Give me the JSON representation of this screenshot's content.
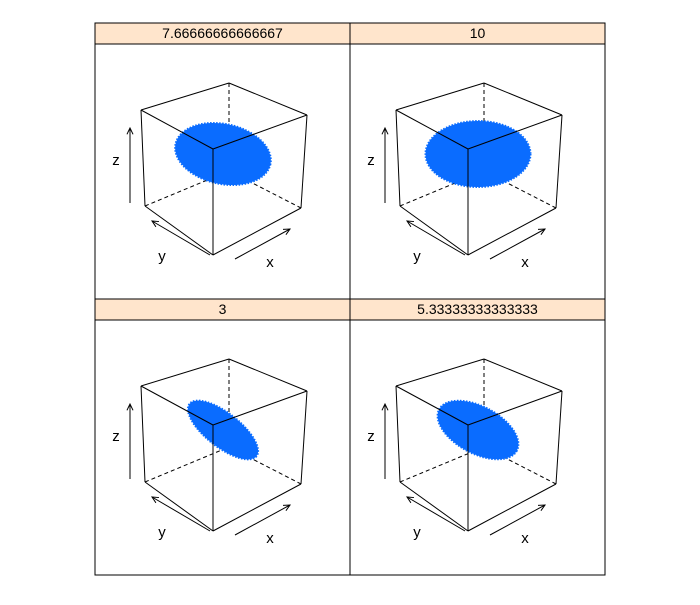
{
  "chart_data": {
    "type": "scatter",
    "layout": "2x2 lattice panels",
    "strip_color": "#ffe5cc",
    "point_color": "#0a6cff",
    "axis_labels": {
      "x": "x",
      "y": "y",
      "z": "z"
    },
    "panels": [
      {
        "strip_label": "7.66666666666667",
        "value": 7.66666666666667,
        "ellipse": {
          "rx": 0.97,
          "ry": 0.6,
          "angle_deg": 12
        }
      },
      {
        "strip_label": "10",
        "value": 10,
        "ellipse": {
          "rx": 1.05,
          "ry": 0.66,
          "angle_deg": 0
        }
      },
      {
        "strip_label": "3",
        "value": 3,
        "ellipse": {
          "rx": 0.85,
          "ry": 0.34,
          "angle_deg": 38
        }
      },
      {
        "strip_label": "5.33333333333333",
        "value": 5.33333333333333,
        "ellipse": {
          "rx": 0.88,
          "ry": 0.47,
          "angle_deg": 28
        }
      }
    ]
  }
}
